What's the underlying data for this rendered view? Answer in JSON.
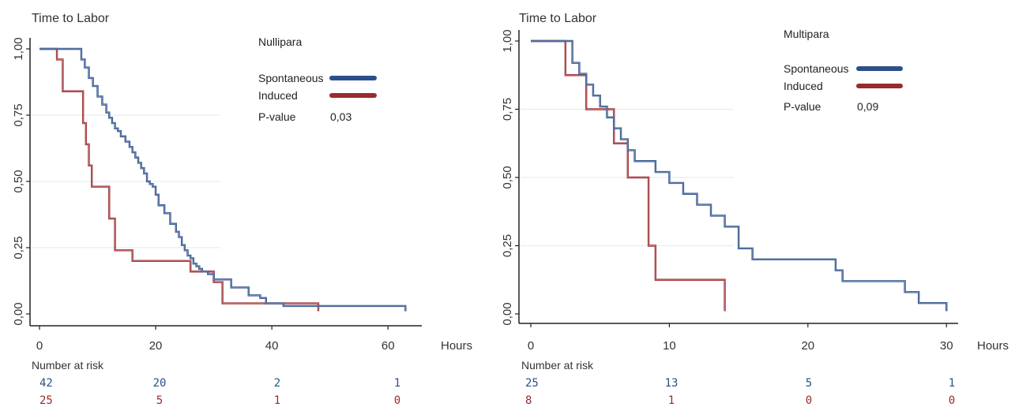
{
  "chart_data": [
    {
      "type": "line",
      "step": true,
      "title": "Time to Labor",
      "xlabel": "Hours",
      "ylabel": "",
      "xlim": [
        0,
        65
      ],
      "ylim": [
        0,
        1
      ],
      "xticks": [
        0,
        20,
        40,
        60
      ],
      "yticks": [
        "0,00",
        "0,25",
        "0,50",
        "0,75",
        "1,00"
      ],
      "ytick_values": [
        0,
        0.25,
        0.5,
        0.75,
        1
      ],
      "legend_title": "Nullipara",
      "legend_position": "top-right",
      "pvalue_label": "P-value",
      "pvalue": "0,03",
      "risk_label": "Number at risk",
      "risk": {
        "Spontaneous": [
          "42",
          "20",
          "2",
          "1"
        ],
        "Induced": [
          "25",
          "5",
          "1",
          "0"
        ]
      },
      "series": [
        {
          "name": "Spontaneous",
          "color": "#2b4f8a",
          "x": [
            0,
            7.2,
            7.8,
            8.5,
            9.2,
            10,
            10.8,
            11.5,
            12,
            12.5,
            13,
            13.5,
            14,
            14.8,
            15.5,
            16,
            16.5,
            17,
            17.5,
            18,
            18.5,
            19,
            19.5,
            20,
            20.5,
            21.5,
            22.5,
            23.5,
            24,
            24.5,
            25,
            25.5,
            26,
            26.5,
            27,
            27.5,
            28,
            29,
            30,
            33,
            36,
            38,
            39,
            42,
            63
          ],
          "y": [
            1,
            0.96,
            0.93,
            0.89,
            0.86,
            0.82,
            0.79,
            0.76,
            0.74,
            0.72,
            0.7,
            0.69,
            0.67,
            0.65,
            0.63,
            0.61,
            0.59,
            0.57,
            0.55,
            0.53,
            0.5,
            0.49,
            0.48,
            0.45,
            0.41,
            0.38,
            0.34,
            0.31,
            0.29,
            0.26,
            0.24,
            0.22,
            0.21,
            0.19,
            0.18,
            0.17,
            0.16,
            0.15,
            0.13,
            0.1,
            0.07,
            0.06,
            0.04,
            0.03,
            0.01
          ]
        },
        {
          "name": "Induced",
          "color": "#9b2a2e",
          "x": [
            0,
            3,
            4,
            7.5,
            8,
            8.5,
            9,
            9.5,
            12,
            13,
            16,
            26,
            30,
            31.5,
            48
          ],
          "y": [
            1,
            0.96,
            0.84,
            0.72,
            0.64,
            0.56,
            0.48,
            0.48,
            0.36,
            0.24,
            0.2,
            0.16,
            0.12,
            0.04,
            0.01
          ]
        }
      ]
    },
    {
      "type": "line",
      "step": true,
      "title": "Time to Labor",
      "xlabel": "Hours",
      "ylabel": "",
      "xlim": [
        0,
        30.5
      ],
      "ylim": [
        0,
        1
      ],
      "xticks": [
        0,
        10,
        20,
        30
      ],
      "yticks": [
        "0,00",
        "0,25",
        "0,50",
        "0,75",
        "1,00"
      ],
      "ytick_values": [
        0,
        0.25,
        0.5,
        0.75,
        1
      ],
      "legend_title": "Multipara",
      "legend_position": "top-right",
      "pvalue_label": "P-value",
      "pvalue": "0,09",
      "risk_label": "Number at risk",
      "risk": {
        "Spontaneous": [
          "25",
          "13",
          "5",
          "1"
        ],
        "Induced": [
          "8",
          "1",
          "0",
          "0"
        ]
      },
      "series": [
        {
          "name": "Spontaneous",
          "color": "#2b4f8a",
          "x": [
            0,
            3,
            3.5,
            4,
            4.5,
            5,
            5.5,
            6,
            6.5,
            7,
            7.5,
            8,
            9,
            10,
            11,
            12,
            13,
            14,
            15,
            16,
            22,
            22.5,
            27,
            28,
            30
          ],
          "y": [
            1,
            0.92,
            0.88,
            0.84,
            0.8,
            0.76,
            0.72,
            0.68,
            0.64,
            0.6,
            0.56,
            0.56,
            0.52,
            0.48,
            0.44,
            0.4,
            0.36,
            0.32,
            0.24,
            0.2,
            0.16,
            0.12,
            0.08,
            0.04,
            0.01
          ]
        },
        {
          "name": "Induced",
          "color": "#9b2a2e",
          "x": [
            0,
            2.5,
            4,
            6,
            7,
            8.5,
            9,
            14
          ],
          "y": [
            1,
            0.875,
            0.75,
            0.625,
            0.5,
            0.25,
            0.125,
            0.01
          ]
        }
      ]
    }
  ]
}
